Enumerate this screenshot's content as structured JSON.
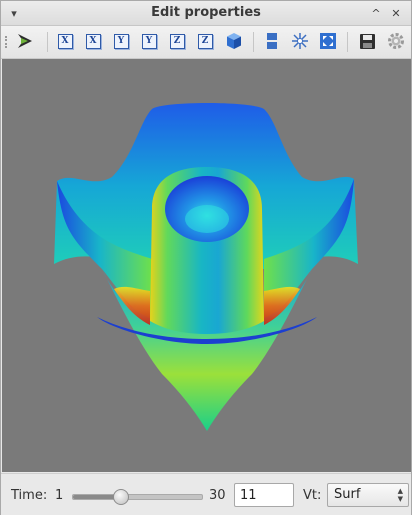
{
  "window": {
    "title": "Edit properties"
  },
  "toolbar": {
    "axis_buttons": [
      "X",
      "X",
      "Y",
      "Y",
      "Z",
      "Z"
    ],
    "icons": [
      "rotate-tool-icon",
      "cube-icon",
      "layout-icon",
      "star-icon",
      "fit-view-icon",
      "save-icon",
      "settings-gear-icon"
    ]
  },
  "bottom": {
    "time_label": "Time:",
    "slider_min": "1",
    "slider_max": "30",
    "slider_value": 11,
    "time_value": "11",
    "vt_label": "Vt:",
    "vt_selected": "Surf"
  },
  "colors": {
    "canvas_bg": "#7a7a7a",
    "accent_blue": "#2f5aa8"
  }
}
